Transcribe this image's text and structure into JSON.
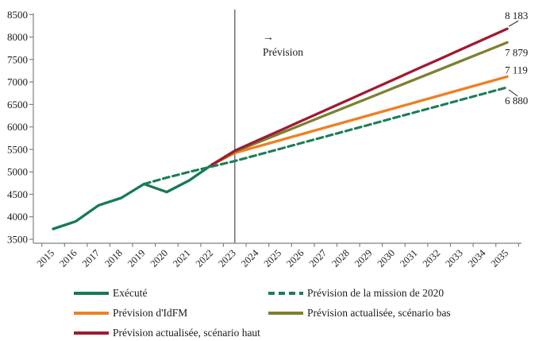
{
  "chart_data": {
    "type": "line",
    "title": "",
    "xlabel": "",
    "ylabel": "",
    "ylim": [
      3500,
      8500
    ],
    "yticks": [
      3500,
      4000,
      4500,
      5000,
      5500,
      6000,
      6500,
      7000,
      7500,
      8000,
      8500
    ],
    "xticks_years": [
      2015,
      2016,
      2017,
      2018,
      2019,
      2020,
      2021,
      2022,
      2023,
      2024,
      2025,
      2026,
      2027,
      2028,
      2029,
      2030,
      2031,
      2032,
      2033,
      2034,
      2035
    ],
    "grid": false,
    "legend_position": "bottom",
    "forecast_divider_year": 2023,
    "annotation": {
      "arrow": "→",
      "label": "Prévision"
    },
    "axis_color": "#808080",
    "divider_color": "#595959",
    "text_color": "#1a1a1a",
    "series": [
      {
        "name": "Exécuté",
        "color": "#177A52",
        "style": "solid",
        "years": [
          2015,
          2016,
          2017,
          2018,
          2019,
          2020,
          2021,
          2022
        ],
        "values": [
          3730,
          3900,
          4255,
          4420,
          4730,
          4550,
          4810,
          5160
        ]
      },
      {
        "name": "Prévision de la mission de 2020",
        "color": "#1B7E57",
        "style": "dashed",
        "years": [
          2019,
          2020,
          2021,
          2022,
          2023,
          2024,
          2025,
          2026,
          2027,
          2028,
          2029,
          2030,
          2031,
          2032,
          2033,
          2034,
          2035
        ],
        "values": [
          4730,
          4870,
          5000,
          5120,
          5240,
          5377,
          5513,
          5650,
          5787,
          5923,
          6060,
          6197,
          6333,
          6470,
          6607,
          6743,
          6880
        ]
      },
      {
        "name": "Prévision d'IdFM",
        "color": "#ED8122",
        "style": "solid",
        "years": [
          2022,
          2023,
          2024,
          2025,
          2026,
          2027,
          2028,
          2029,
          2030,
          2031,
          2032,
          2033,
          2034,
          2035
        ],
        "values": [
          5160,
          5420,
          5562,
          5703,
          5845,
          5986,
          6128,
          6270,
          6411,
          6553,
          6694,
          6836,
          6977,
          7119
        ]
      },
      {
        "name": "Prévision actualisée, scénario bas",
        "color": "#7D8030",
        "style": "solid",
        "years": [
          2022,
          2023,
          2024,
          2025,
          2026,
          2027,
          2028,
          2029,
          2030,
          2031,
          2032,
          2033,
          2034,
          2035
        ],
        "values": [
          5160,
          5450,
          5652,
          5855,
          6057,
          6260,
          6462,
          6664,
          6867,
          7069,
          7271,
          7474,
          7676,
          7879
        ]
      },
      {
        "name": "Prévision actualisée, scénario haut",
        "color": "#9E1B33",
        "style": "solid",
        "years": [
          2022,
          2023,
          2024,
          2025,
          2026,
          2027,
          2028,
          2029,
          2030,
          2031,
          2032,
          2033,
          2034,
          2035
        ],
        "values": [
          5160,
          5470,
          5696,
          5922,
          6148,
          6374,
          6600,
          6827,
          7053,
          7279,
          7505,
          7731,
          7957,
          8183
        ]
      }
    ],
    "end_labels": [
      {
        "text": "8 183",
        "value": 8183,
        "leader": "up"
      },
      {
        "text": "7 879",
        "value": 7879,
        "dy": 17
      },
      {
        "text": "7 119",
        "value": 7119,
        "dy": -4
      },
      {
        "text": "6 880",
        "value": 6880,
        "leader": "down"
      }
    ]
  },
  "legend": {
    "items": [
      {
        "series_index": 0
      },
      {
        "series_index": 1
      },
      {
        "series_index": 2
      },
      {
        "series_index": 3
      },
      {
        "series_index": 4
      }
    ]
  }
}
